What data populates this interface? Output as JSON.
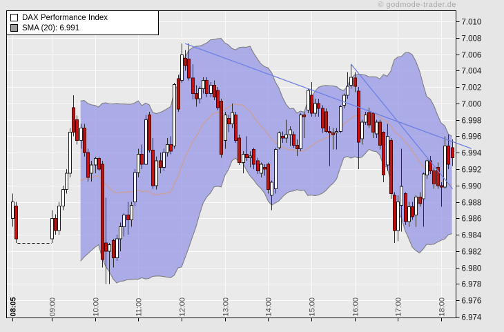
{
  "watermark": "© godmode-trader.de",
  "legend": {
    "items": [
      {
        "swatch": "white",
        "label": "DAX Performance Index"
      },
      {
        "swatch": "gray",
        "label": "SMA (20): 6.991"
      }
    ]
  },
  "chart_data": {
    "type": "candlestick",
    "title": "DAX Performance Index",
    "instrument": "DAX Performance Index",
    "interval_minutes": 5,
    "time_range": [
      "08:05",
      "18:15"
    ],
    "x_ticks": [
      "08:05",
      "09:00",
      "10:00",
      "11:00",
      "12:00",
      "13:00",
      "14:00",
      "15:00",
      "16:00",
      "17:00",
      "18:00"
    ],
    "y_axis": {
      "max": 7.01,
      "min": 6.974,
      "step": 0.002,
      "labels": [
        "7.010",
        "7.008",
        "7.006",
        "7.004",
        "7.002",
        "7.000",
        "6.998",
        "6.996",
        "6.994",
        "6.992",
        "6.990",
        "6.988",
        "6.986",
        "6.984",
        "6.982",
        "6.980",
        "6.978",
        "6.976",
        "6.974"
      ]
    },
    "candles": [
      [
        "08:05",
        6.986,
        6.989,
        6.985,
        6.988
      ],
      [
        "08:10",
        6.9875,
        6.988,
        6.983,
        6.9835
      ],
      [
        "09:00",
        6.9835,
        6.987,
        6.983,
        6.986
      ],
      [
        "09:05",
        6.986,
        6.9865,
        6.984,
        6.9845
      ],
      [
        "09:10",
        6.9845,
        6.988,
        6.984,
        6.9875
      ],
      [
        "09:15",
        6.9875,
        6.99,
        6.987,
        6.9895
      ],
      [
        "09:20",
        6.9895,
        6.992,
        6.989,
        6.9915
      ],
      [
        "09:25",
        6.9915,
        6.997,
        6.991,
        6.9965
      ],
      [
        "09:30",
        6.9995,
        7.001,
        6.996,
        6.9965
      ],
      [
        "09:35",
        6.998,
        6.9985,
        6.995,
        6.9955
      ],
      [
        "09:40",
        6.9955,
        6.9975,
        6.9945,
        6.997
      ],
      [
        "09:45",
        6.997,
        6.9975,
        6.9935,
        6.994
      ],
      [
        "09:50",
        6.994,
        6.9945,
        6.9905,
        6.991
      ],
      [
        "09:55",
        6.9915,
        6.993,
        6.9905,
        6.9925
      ],
      [
        "10:00",
        6.9925,
        6.9935,
        6.9915,
        6.9933
      ],
      [
        "10:05",
        6.9933,
        6.9935,
        6.9918,
        6.992
      ],
      [
        "10:10",
        6.9926,
        6.993,
        6.98,
        6.981
      ],
      [
        "10:15",
        6.983,
        6.9885,
        6.978,
        6.982
      ],
      [
        "10:20",
        6.982,
        6.983,
        6.978,
        6.9828
      ],
      [
        "10:25",
        6.9833,
        6.9835,
        6.98,
        6.9812
      ],
      [
        "10:30",
        6.9812,
        6.984,
        6.9808,
        6.9835
      ],
      [
        "10:35",
        6.9835,
        6.9855,
        6.982,
        6.985
      ],
      [
        "10:40",
        6.985,
        6.9866,
        6.9838,
        6.9864
      ],
      [
        "10:45",
        6.9864,
        6.988,
        6.984,
        6.9858
      ],
      [
        "10:50",
        6.9858,
        6.988,
        6.985,
        6.9876
      ],
      [
        "10:55",
        6.988,
        6.992,
        6.9875,
        6.9916
      ],
      [
        "11:00",
        6.9916,
        6.9945,
        6.991,
        6.9938
      ],
      [
        "11:05",
        6.9938,
        6.995,
        6.992,
        6.9926
      ],
      [
        "11:10",
        6.9926,
        6.9986,
        6.9925,
        6.998
      ],
      [
        "11:15",
        6.9986,
        6.999,
        6.994,
        6.9943
      ],
      [
        "11:20",
        6.9943,
        6.9958,
        6.9896,
        6.99
      ],
      [
        "11:25",
        6.99,
        6.9935,
        6.9895,
        6.993
      ],
      [
        "11:30",
        6.993,
        6.994,
        6.9915,
        6.9922
      ],
      [
        "11:35",
        6.9922,
        6.9945,
        6.9918,
        6.994
      ],
      [
        "11:40",
        6.994,
        6.9958,
        6.9935,
        6.995
      ],
      [
        "11:45",
        6.995,
        6.996,
        6.9938,
        6.9942
      ],
      [
        "11:50",
        6.9948,
        7.0025,
        6.9945,
        7.0023
      ],
      [
        "11:55",
        7.003,
        7.0035,
        6.999,
        6.9993
      ],
      [
        "12:00",
        7.0028,
        7.0073,
        7.0025,
        7.0059
      ],
      [
        "12:05",
        7.0055,
        7.0065,
        7.004,
        7.0046
      ],
      [
        "12:10",
        7.0054,
        7.0073,
        7.0028,
        7.0031
      ],
      [
        "12:15",
        7.0031,
        7.0048,
        7.0005,
        7.0012
      ],
      [
        "12:20",
        7.0012,
        7.0022,
        6.9996,
        7.0006
      ],
      [
        "12:25",
        7.0006,
        7.0021,
        7.0,
        7.0018
      ],
      [
        "12:30",
        7.0018,
        7.0032,
        7.0012,
        7.0028
      ],
      [
        "12:35",
        7.0028,
        7.0032,
        7.0008,
        7.0012
      ],
      [
        "12:40",
        7.0012,
        7.0026,
        7.0008,
        7.0022
      ],
      [
        "12:45",
        7.0022,
        7.0028,
        7.0004,
        7.0008
      ],
      [
        "12:50",
        7.0016,
        7.002,
        6.9992,
        6.9995
      ],
      [
        "12:55",
        7.0003,
        7.0006,
        6.9934,
        6.9938
      ],
      [
        "13:00",
        6.9955,
        6.999,
        6.9945,
        6.9986
      ],
      [
        "13:05",
        6.9982,
        6.9986,
        6.9965,
        6.9975
      ],
      [
        "13:10",
        6.9975,
        7.0,
        6.997,
        6.9989
      ],
      [
        "13:15",
        6.9986,
        6.999,
        6.9952,
        6.9955
      ],
      [
        "13:20",
        6.9958,
        6.9962,
        6.9925,
        6.9928
      ],
      [
        "13:25",
        6.9928,
        6.9942,
        6.9915,
        6.9938
      ],
      [
        "13:30",
        6.9938,
        6.996,
        6.993,
        6.9934
      ],
      [
        "13:35",
        6.9934,
        6.9942,
        6.9922,
        6.9936
      ],
      [
        "13:40",
        6.9944,
        6.9946,
        6.992,
        6.9926
      ],
      [
        "13:45",
        6.993,
        6.9934,
        6.9914,
        6.9918
      ],
      [
        "13:50",
        6.9915,
        6.9928,
        6.991,
        6.9926
      ],
      [
        "13:55",
        6.9922,
        6.9926,
        6.9912,
        6.992
      ],
      [
        "14:00",
        6.9926,
        6.9928,
        6.989,
        6.9895
      ],
      [
        "14:05",
        6.9888,
        6.9906,
        6.987,
        6.9904
      ],
      [
        "14:10",
        6.9896,
        6.9946,
        6.989,
        6.9944
      ],
      [
        "14:15",
        6.9946,
        6.9966,
        6.9944,
        6.9964
      ],
      [
        "14:20",
        6.996,
        6.9966,
        6.9952,
        6.9958
      ],
      [
        "14:25",
        6.9958,
        6.998,
        6.9952,
        6.9962
      ],
      [
        "14:30",
        6.9962,
        6.9972,
        6.9948,
        6.9968
      ],
      [
        "14:35",
        6.9962,
        6.9966,
        6.9946,
        6.9949
      ],
      [
        "14:40",
        6.9949,
        6.9956,
        6.9936,
        6.9945
      ],
      [
        "14:45",
        6.9945,
        6.9988,
        6.9942,
        6.9986
      ],
      [
        "14:50",
        6.9986,
        6.999,
        6.9958,
        6.9984
      ],
      [
        "14:55",
        6.9992,
        7.0018,
        6.9988,
        7.0016
      ],
      [
        "15:00",
        7.001,
        7.0026,
        6.9984,
        6.9988
      ],
      [
        "15:05",
        6.9988,
        7.0006,
        6.9984,
        7.0
      ],
      [
        "15:10",
        7.0,
        7.0006,
        6.9984,
        6.9994
      ],
      [
        "15:15",
        6.9994,
        6.9998,
        6.9964,
        6.997
      ],
      [
        "15:20",
        6.999,
        6.9994,
        6.9964,
        6.9966
      ],
      [
        "15:25",
        6.9966,
        6.9972,
        6.9924,
        6.9964
      ],
      [
        "15:30",
        6.9964,
        6.997,
        6.9944,
        6.9962
      ],
      [
        "15:35",
        6.9964,
        6.997,
        6.9944,
        6.9966
      ],
      [
        "15:40",
        6.9966,
        6.9998,
        6.9964,
        6.9996
      ],
      [
        "15:45",
        6.9998,
        7.0012,
        6.9994,
        7.001
      ],
      [
        "15:50",
        7.001,
        7.0038,
        7.0006,
        7.0021
      ],
      [
        "15:55",
        7.0022,
        7.0048,
        7.0018,
        7.0032
      ],
      [
        "16:00",
        7.0031,
        7.0038,
        7.0014,
        7.0021
      ],
      [
        "16:05",
        7.0015,
        7.002,
        6.992,
        6.9953
      ],
      [
        "16:10",
        6.9957,
        6.998,
        6.995,
        6.9977
      ],
      [
        "16:15",
        6.9977,
        6.999,
        6.9974,
        6.9986
      ],
      [
        "16:20",
        6.9989,
        6.9995,
        6.997,
        6.9974
      ],
      [
        "16:25",
        6.9988,
        6.999,
        6.9958,
        6.9965
      ],
      [
        "16:30",
        6.9963,
        6.998,
        6.9958,
        6.9977
      ],
      [
        "16:35",
        6.9977,
        6.998,
        6.9944,
        6.9949
      ],
      [
        "16:40",
        6.9965,
        6.9966,
        6.9904,
        6.9913
      ],
      [
        "16:45",
        6.9925,
        6.9975,
        6.9918,
        6.996
      ],
      [
        "16:50",
        6.9955,
        6.9958,
        6.9884,
        6.989
      ],
      [
        "16:55",
        6.9888,
        6.9892,
        6.983,
        6.9845
      ],
      [
        "17:00",
        6.9845,
        6.9888,
        6.9832,
        6.988
      ],
      [
        "17:05",
        6.9876,
        6.9945,
        6.9844,
        6.9899
      ],
      [
        "17:10",
        6.989,
        6.9892,
        6.9852,
        6.9856
      ],
      [
        "17:15",
        6.9856,
        6.988,
        6.985,
        6.9874
      ],
      [
        "17:20",
        6.9874,
        6.988,
        6.9858,
        6.9862
      ],
      [
        "17:25",
        6.9864,
        6.9888,
        6.985,
        6.9886
      ],
      [
        "17:30",
        6.9886,
        6.9892,
        6.9874,
        6.9878
      ],
      [
        "17:35",
        6.9884,
        6.9916,
        6.985,
        6.9914
      ],
      [
        "17:40",
        6.9913,
        6.9932,
        6.9908,
        6.993
      ],
      [
        "17:45",
        6.993,
        6.9936,
        6.9914,
        6.9918
      ],
      [
        "17:50",
        6.9918,
        6.9922,
        6.9896,
        6.9902
      ],
      [
        "17:55",
        6.9922,
        6.9928,
        6.9896,
        6.99
      ],
      [
        "18:00",
        6.99,
        6.9904,
        6.9874,
        6.9898
      ],
      [
        "18:05",
        6.9898,
        6.996,
        6.9896,
        6.9948
      ],
      [
        "18:10",
        6.9948,
        6.9962,
        6.992,
        6.9926
      ],
      [
        "18:15",
        6.9946,
        6.9956,
        6.9924,
        6.9934
      ]
    ],
    "overlays": {
      "sma": {
        "period": 20,
        "start_index": 10,
        "last_value": 6.991
      },
      "bollinger_band": {
        "period": 20,
        "stddev": 2,
        "start_index": 10
      },
      "trendlines": [
        {
          "x1": "12:05",
          "y1": 7.0073,
          "x2": "18:42",
          "y2": 6.9945
        },
        {
          "x1": "15:55",
          "y1": 7.0048,
          "x2": "18:16",
          "y2": 6.9896
        }
      ],
      "dashed_close_line": {
        "from": "08:10",
        "to": "09:00",
        "price": 6.983
      }
    },
    "colors": {
      "up_candle": "#ffffff",
      "down_candle": "#c21212",
      "candle_stroke": "#1f1f1f",
      "down_stroke": "#4d0505",
      "band_fill": "#9d9de6",
      "band_edge": "#7e7e7e",
      "sma_line": "#c9a0a0",
      "trendline": "#6e80e4",
      "grid": "#fbfbfb",
      "plot_bg": "#eaeaea",
      "page_bg": "#e6e6e6",
      "axis_text": "#111111",
      "x_label_text": "#4a4a4a",
      "watermark_text": "#a8a8a8"
    }
  }
}
